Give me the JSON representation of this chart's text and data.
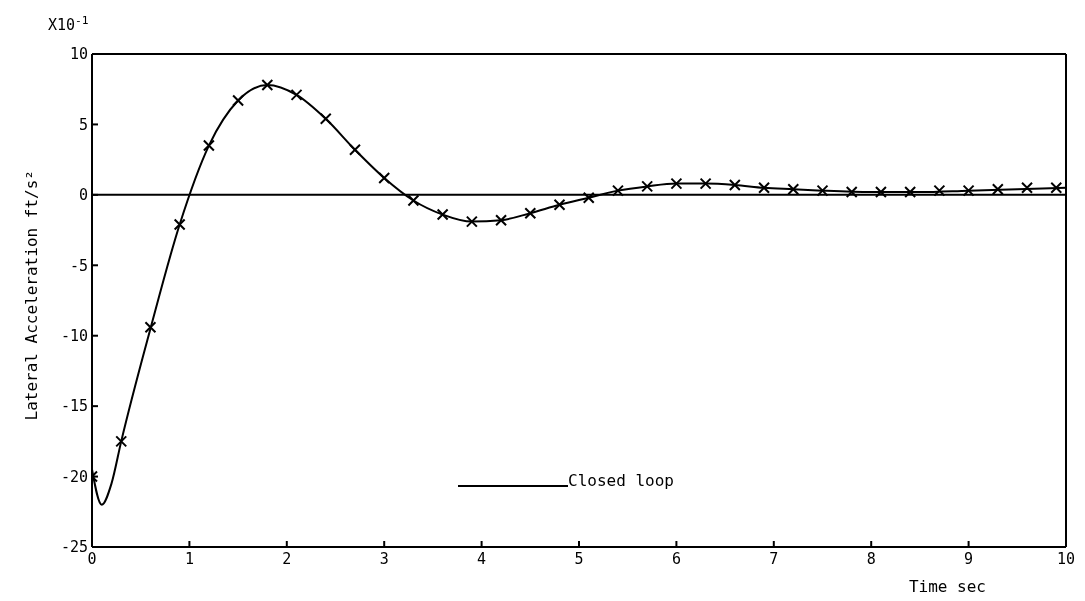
{
  "chart_data": {
    "type": "line",
    "xlabel": "Time sec",
    "ylabel": "Lateral Acceleration ft/s²",
    "annotations": [
      "X10$^{-1}$"
    ],
    "xlim": [
      0,
      10
    ],
    "xticks": [
      0,
      1,
      2,
      3,
      4,
      5,
      6,
      7,
      8,
      9,
      10
    ],
    "ylim": [
      -25,
      10
    ],
    "yticks": [
      -25,
      -20,
      -15,
      -10,
      -5,
      0,
      5,
      10
    ],
    "legend": "bottom",
    "ref_lines": [
      {
        "axis": "y",
        "value": 0,
        "color": "#000000"
      }
    ],
    "series": [
      {
        "name": "Closed loop",
        "color": "#000000",
        "marker": "none",
        "line_style": "solid",
        "x": [
          0,
          0.1,
          0.2,
          0.3,
          0.6,
          0.9,
          1.2,
          1.5,
          1.8,
          2.1,
          2.4,
          2.7,
          3.0,
          3.3,
          3.6,
          3.9,
          4.2,
          4.5,
          4.8,
          5.1,
          5.4,
          5.7,
          6.0,
          6.3,
          6.6,
          6.9,
          7.2,
          7.5,
          8.0,
          8.5,
          9.0,
          9.5,
          10
        ],
        "values": [
          -19.5,
          -22,
          -20.5,
          -17.5,
          -9.5,
          -2.1,
          3.5,
          6.7,
          7.8,
          7.1,
          5.4,
          3.2,
          1.2,
          -0.4,
          -1.4,
          -1.9,
          -1.8,
          -1.3,
          -0.7,
          -0.2,
          0.3,
          0.6,
          0.8,
          0.8,
          0.7,
          0.5,
          0.4,
          0.3,
          0.2,
          0.2,
          0.3,
          0.4,
          0.5
        ]
      },
      {
        "type": "scatter",
        "color": "#000000",
        "marker": "cross",
        "x": [
          0,
          0.3,
          0.6,
          0.9,
          1.2,
          1.5,
          1.8,
          2.1,
          2.4,
          2.7,
          3.0,
          3.3,
          3.6,
          3.9,
          4.2,
          4.5,
          4.8,
          5.1,
          5.4,
          5.7,
          6.0,
          6.3,
          6.6,
          6.9,
          7.2,
          7.5,
          7.8,
          8.1,
          8.4,
          8.7,
          9.0,
          9.3,
          9.6,
          9.9
        ],
        "values": [
          -20,
          -17.5,
          -9.4,
          -2.1,
          3.5,
          6.7,
          7.8,
          7.1,
          5.4,
          3.2,
          1.2,
          -0.4,
          -1.4,
          -1.9,
          -1.8,
          -1.3,
          -0.7,
          -0.2,
          0.3,
          0.6,
          0.8,
          0.8,
          0.7,
          0.5,
          0.4,
          0.3,
          0.2,
          0.2,
          0.2,
          0.3,
          0.3,
          0.4,
          0.5,
          0.5
        ]
      }
    ]
  }
}
